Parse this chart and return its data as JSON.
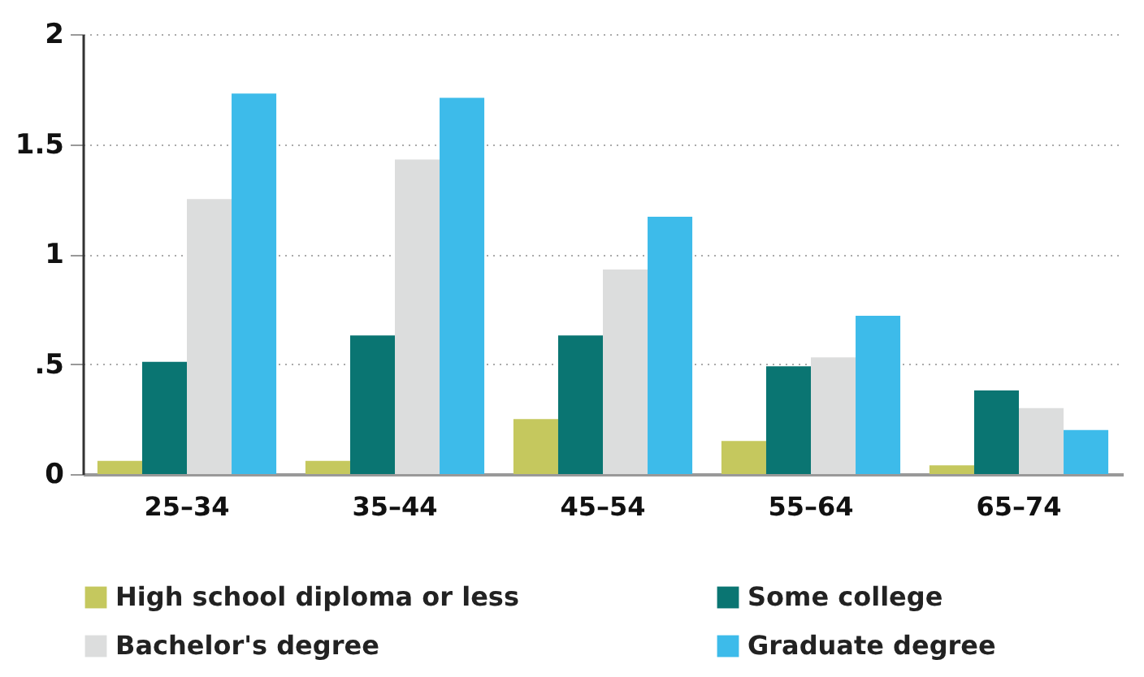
{
  "chart_data": {
    "type": "bar",
    "categories": [
      "25–34",
      "35–44",
      "45–54",
      "55–64",
      "65–74"
    ],
    "series": [
      {
        "name": "High school diploma or less",
        "color": "#c5c85e",
        "values": [
          0.06,
          0.06,
          0.25,
          0.15,
          0.04
        ]
      },
      {
        "name": "Some college",
        "color": "#0a7572",
        "values": [
          0.51,
          0.63,
          0.63,
          0.49,
          0.38
        ]
      },
      {
        "name": "Bachelor's degree",
        "color": "#dcdddd",
        "values": [
          1.25,
          1.43,
          0.93,
          0.53,
          0.3
        ]
      },
      {
        "name": "Graduate degree",
        "color": "#3dbbea",
        "values": [
          1.73,
          1.71,
          1.17,
          0.72,
          0.2
        ]
      }
    ],
    "ylim": [
      0,
      2
    ],
    "yticks": [
      0,
      {
        "value": 0.5,
        "label": ".5"
      },
      1,
      1.5,
      2
    ],
    "grid": "y",
    "legend": "bottom"
  }
}
